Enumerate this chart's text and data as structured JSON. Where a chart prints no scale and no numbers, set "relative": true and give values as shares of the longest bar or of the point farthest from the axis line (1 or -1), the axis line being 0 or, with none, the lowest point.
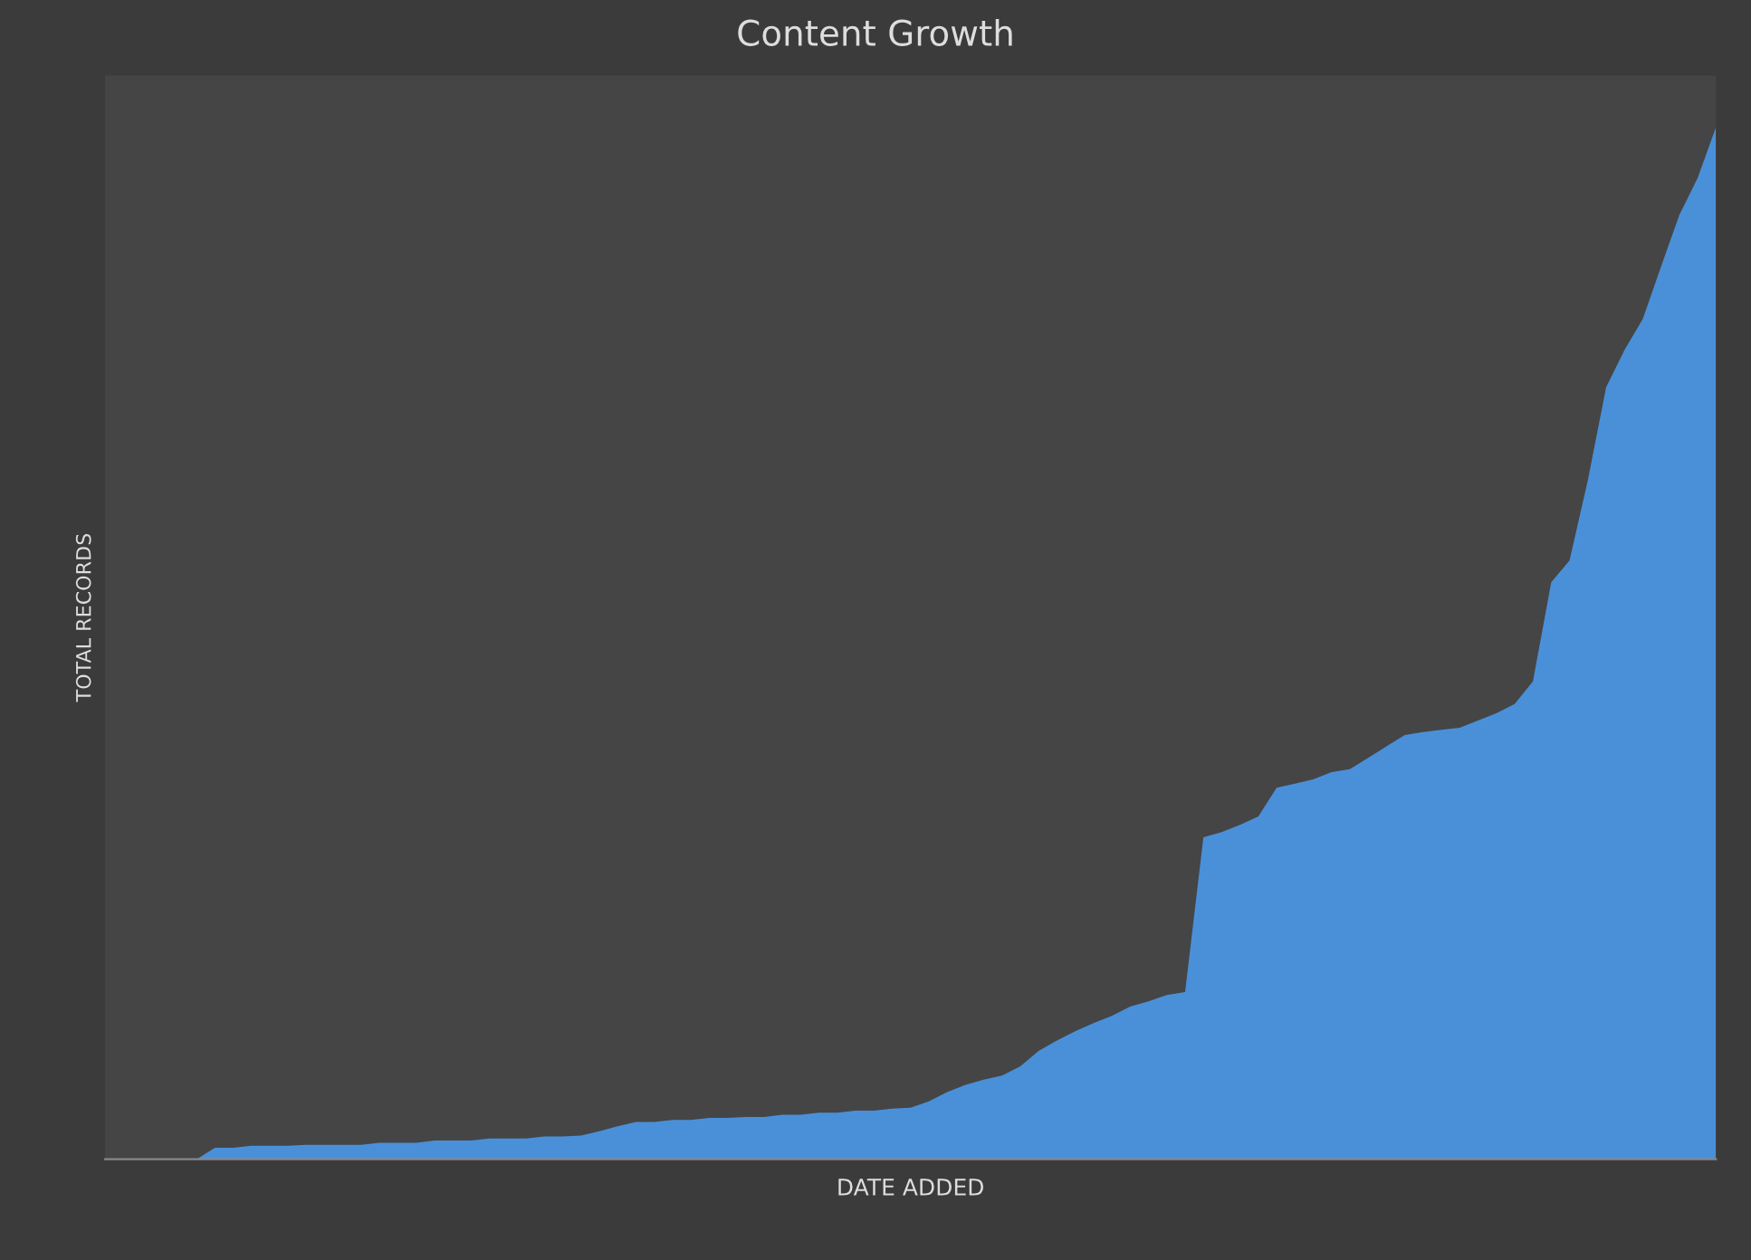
{
  "chart_data": {
    "type": "area",
    "title": "Content Growth",
    "xlabel": "DATE ADDED",
    "ylabel": "TOTAL RECORDS",
    "relative": true,
    "grid": false,
    "legend": false,
    "categories": [
      null,
      null,
      null,
      null,
      null,
      null,
      null,
      null,
      null,
      null,
      null,
      null,
      null,
      null,
      null,
      null,
      null,
      null,
      null,
      null,
      null,
      null,
      null,
      null,
      null,
      null,
      null,
      null,
      null,
      null,
      null,
      null,
      null,
      null,
      null,
      null,
      null,
      null,
      null,
      null,
      null,
      null,
      null,
      null,
      null,
      null,
      null,
      null,
      null,
      null,
      null,
      null,
      null,
      null,
      null,
      null,
      null,
      null,
      null,
      null,
      null,
      null,
      null,
      null,
      null,
      null,
      null,
      null,
      null,
      null,
      null,
      null,
      null,
      null,
      null,
      null,
      null,
      null,
      null,
      null,
      null,
      null,
      null,
      null,
      null,
      null,
      null,
      null,
      null
    ],
    "series": [
      {
        "color": "#4a90d9",
        "values": [
          0,
          0,
          0,
          0,
          0,
          0,
          0.011,
          0.011,
          0.013,
          0.013,
          0.013,
          0.014,
          0.014,
          0.014,
          0.014,
          0.016,
          0.016,
          0.016,
          0.018,
          0.018,
          0.018,
          0.02,
          0.02,
          0.02,
          0.022,
          0.022,
          0.023,
          0.027,
          0.032,
          0.036,
          0.036,
          0.038,
          0.038,
          0.04,
          0.04,
          0.041,
          0.041,
          0.043,
          0.043,
          0.045,
          0.045,
          0.047,
          0.047,
          0.049,
          0.05,
          0.056,
          0.065,
          0.072,
          0.077,
          0.081,
          0.09,
          0.105,
          0.115,
          0.124,
          0.132,
          0.139,
          0.148,
          0.153,
          0.159,
          0.162,
          0.312,
          0.317,
          0.324,
          0.332,
          0.36,
          0.364,
          0.368,
          0.375,
          0.378,
          0.389,
          0.4,
          0.411,
          0.414,
          0.416,
          0.418,
          0.425,
          0.432,
          0.441,
          0.463,
          0.559,
          0.58,
          0.658,
          0.748,
          0.784,
          0.814,
          0.865,
          0.915,
          0.951,
          1
        ]
      }
    ]
  }
}
